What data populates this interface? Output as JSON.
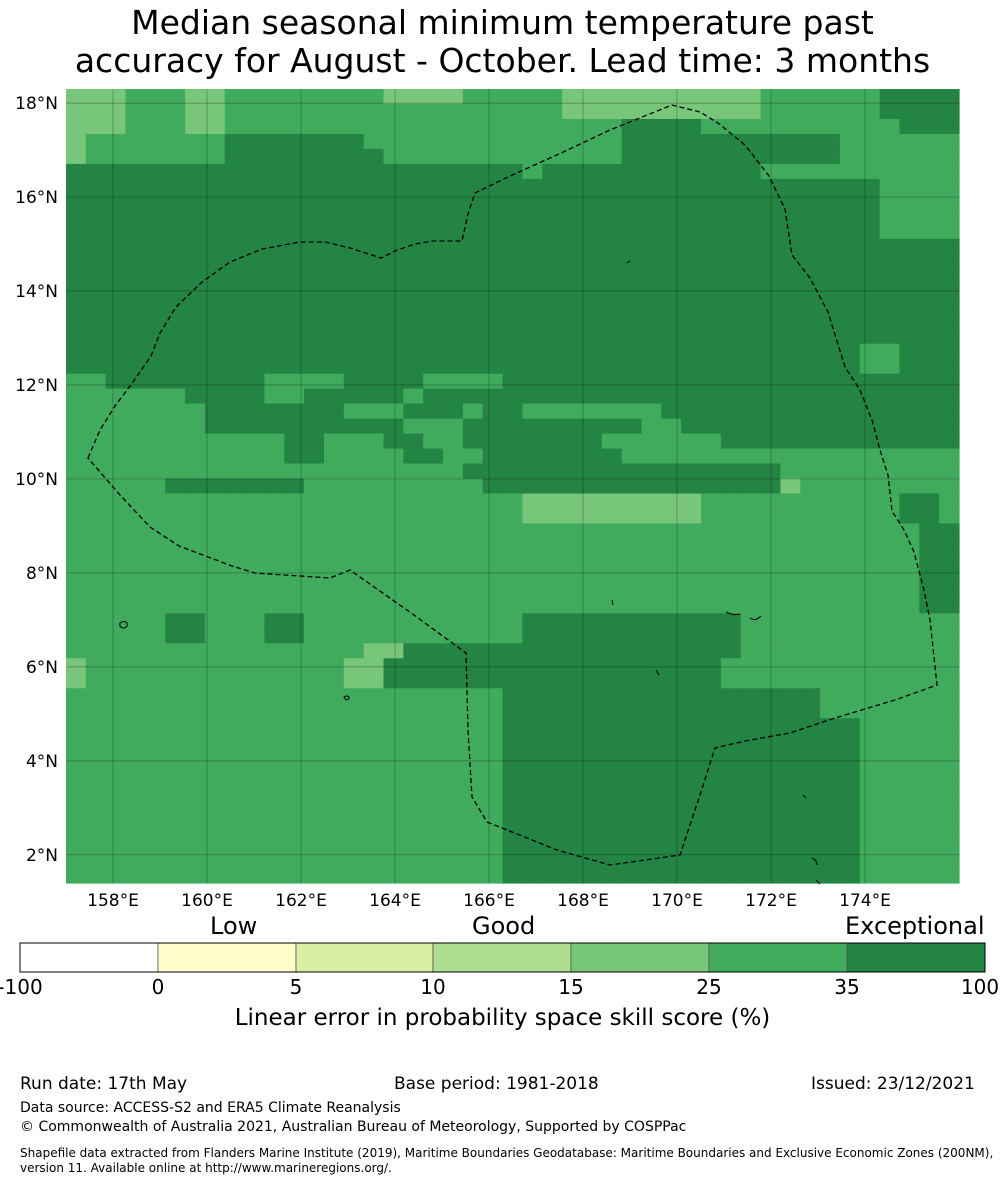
{
  "title": {
    "line1": "Median seasonal minimum temperature past",
    "line2": "accuracy for August - October. Lead time: 3 months"
  },
  "map": {
    "lon_range": [
      157.0,
      176.0
    ],
    "lat_range": [
      1.4,
      18.3
    ],
    "grid": true,
    "lat_ticks": [
      "18°N",
      "16°N",
      "14°N",
      "12°N",
      "10°N",
      "8°N",
      "6°N",
      "4°N",
      "2°N"
    ],
    "lon_ticks": [
      "158°E",
      "160°E",
      "162°E",
      "164°E",
      "166°E",
      "168°E",
      "170°E",
      "172°E",
      "174°E"
    ],
    "shading_levels": {
      "lower_bounds": [
        -100,
        0,
        5,
        10,
        15,
        25,
        35
      ],
      "colors": [
        "#ffffff",
        "#ffffcc",
        "#d9f0a3",
        "#addd8e",
        "#78c679",
        "#41ab5d",
        "#238443"
      ]
    },
    "eez_boundary": "dashed black line",
    "coastline": "solid black line"
  },
  "colorbar": {
    "labels": [
      "Low",
      "Good",
      "Exceptional"
    ],
    "ticks": [
      "-100",
      "0",
      "5",
      "10",
      "15",
      "25",
      "35",
      "100"
    ],
    "title": "Linear error in probability space skill score (%)"
  },
  "footer": {
    "run_date": "Run date: 17th May",
    "base_period": "Base period: 1981-2018",
    "issued": "Issued: 23/12/2021",
    "data_source": "Data source: ACCESS-S2 and ERA5 Climate Reanalysis",
    "copyright": "© Commonwealth of Australia 2021, Australian Bureau of Meteorology, Supported by COSPPac",
    "shapefile_line1": "Shapefile data extracted from Flanders Marine Institute (2019), Maritime Boundaries Geodatabase: Maritime Boundaries and Exclusive Economic Zones (200NM),",
    "shapefile_line2": "version 11. Available online at http://www.marineregions.org/."
  },
  "chart_data": {
    "type": "heatmap",
    "title": "Median seasonal minimum temperature past accuracy for August - October. Lead time: 3 months",
    "value_legend": "0=Linear error skill <15% (15-25 band), 1=25-35 band, 2=35-100 band, -1=10-15 band",
    "grid_origin": "top-left at 157°E, 18.3°N; rows top to bottom, 1 cell ≈ 0.83° lon × 0.56° lat",
    "rows": [
      "000111001111111100001111100000000001111112222",
      "000111001111111111111111100000000001111112222",
      "000111001111111111111111111122221111111111222",
      "011111112222222111111111111122222222222111111",
      "011111112222222211111111111122222222222111111",
      "222222222222222222222221222222222221111111111",
      "222222222222222222222222222222222222222221111",
      "222222222222222222222222222222222222222221111",
      "222222222222222222222222222222222222222221111",
      "222222222222222222222222222222222222222221111",
      "222222222222222222222222222222222222222222222",
      "222222222222222222222222222222222222222222222",
      "222222222222222222222222222222222222222222222",
      "222222222222222222222222222222222222222222222",
      "222222222222222222222222222222222222222222222",
      "222222222222222222222222222222222222222222222",
      "222222222222222222222222222222222222222222222",
      "222222222222222222222222222222222222222211222",
      "222222222222222222222222222222222222222211222",
      "112222222211112222111122222222222222222222222",
      "111111222211222221222222222222222222222222222",
      "111111122222221112221221111111222222222222222",
      "111111122222222221112222222221122222222222222",
      "111111111112211122112222222111111222222222222",
      "111111111112211112211222222211111111111111111",
      "111111111111111111112222222222222222111111111",
      "111112222222111111111222222222222222011111111",
      "111111111111111111111110000000001111111111221",
      "111111111111111111111110000000001111111111221",
      "111111111111111111111111111111111111111111122",
      "111111111111111111111111111111111111111111122",
      "111111111111111111111111111111111111111111122",
      "111111111111111111111111111111111111111111122",
      "111111111111111111111111111111111111111111122",
      "111111111111111111111111111111111111111111122",
      "111112211122111111111112222222222211111111111",
      "111112211122111111111112222222222211111111111",
      "111111111111111002222222222222222211111111111",
      "011111111111110022222222222222222111111111111",
      "011111111111110022222222222222222111111111111",
      "111111111111111111111122222222222222221111111",
      "111111111111111111111122222222222222221111111",
      "111111111111111111111122222222222222222211111",
      "111111111111111111111122222222222222222211111",
      "111111111111111111111122222222222222222211111",
      "111111111111111111111122222222222222222211111",
      "111111111111111111111122222222222222222211111",
      "111111111111111111111122222222222222222211111",
      "111111111111111111111122222222222222222211111",
      "111111111111111111111122222222222222222211111",
      "111111111111111111111122222222222222222211111",
      "111111111111111111111122222222222222222211111",
      "111111111111111111111122222222222222222211111"
    ]
  }
}
